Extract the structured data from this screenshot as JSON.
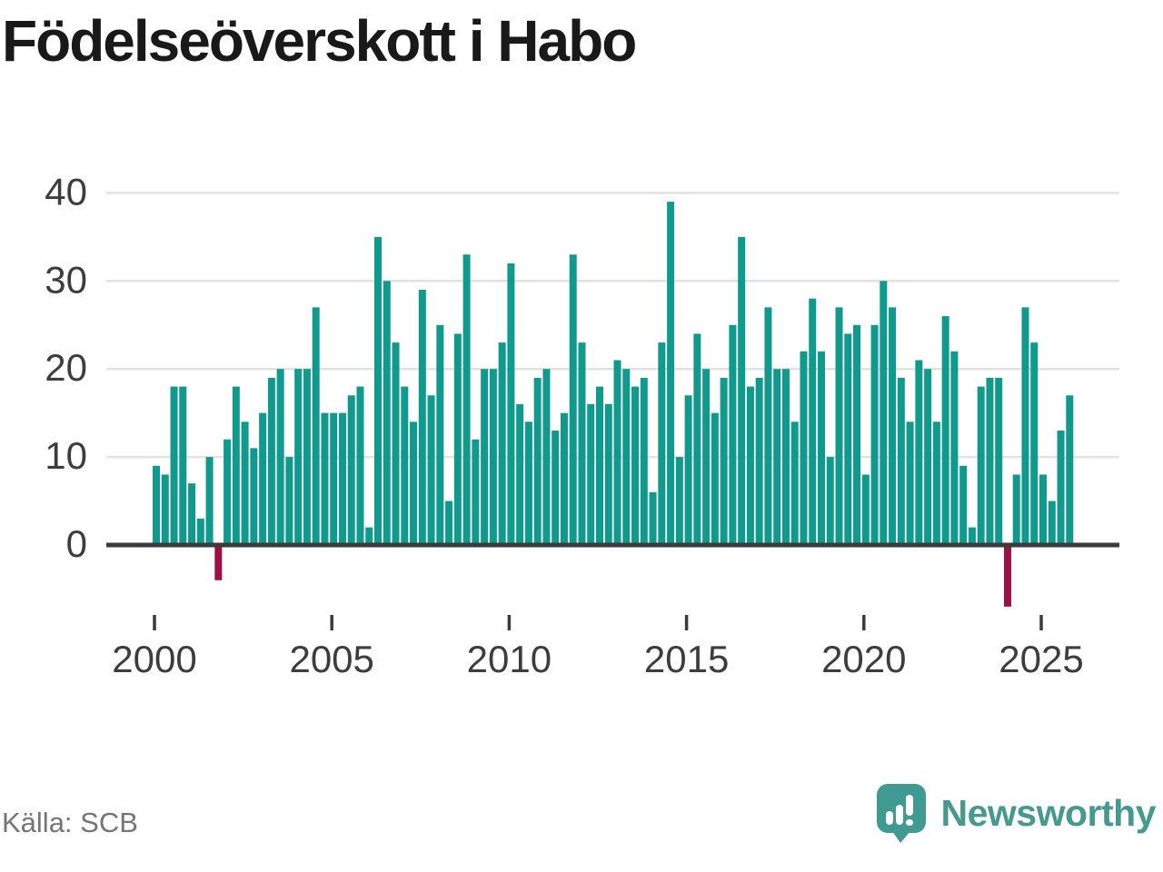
{
  "title": "Födelseöverskott i Habo",
  "source": "Källa: SCB",
  "brand": {
    "name": "Newsworthy"
  },
  "colors": {
    "bar_positive": "#109a8d",
    "bar_negative": "#9e0f46",
    "gridline": "#e2e2e2",
    "axis_line": "#3b3b3b",
    "tick_label": "#3d3d3d",
    "source_text": "#757575",
    "brand_teal": "#46998f",
    "title_text": "#191919"
  },
  "chart_data": {
    "type": "bar",
    "title": "Födelseöverskott i Habo",
    "source": "Källa: SCB",
    "frequency": "quarterly",
    "x_start": "2000-Q1",
    "x_end": "2025-Q4",
    "xlabel": "",
    "ylabel": "",
    "ylim": [
      -10,
      42
    ],
    "grid": true,
    "legend": false,
    "y_ticks": [
      0,
      10,
      20,
      30,
      40
    ],
    "x_ticks": [
      2000,
      2005,
      2010,
      2015,
      2020,
      2025
    ],
    "values": [
      9,
      8,
      18,
      18,
      7,
      3,
      10,
      -4,
      12,
      18,
      14,
      11,
      15,
      19,
      20,
      10,
      20,
      20,
      27,
      15,
      15,
      15,
      17,
      18,
      2,
      35,
      30,
      23,
      18,
      14,
      29,
      17,
      25,
      5,
      24,
      33,
      12,
      20,
      20,
      23,
      32,
      16,
      14,
      19,
      20,
      13,
      15,
      33,
      23,
      16,
      18,
      16,
      21,
      20,
      18,
      19,
      6,
      23,
      39,
      10,
      17,
      24,
      20,
      15,
      19,
      25,
      35,
      18,
      19,
      27,
      20,
      20,
      14,
      22,
      28,
      22,
      10,
      27,
      24,
      25,
      8,
      25,
      30,
      27,
      19,
      14,
      21,
      20,
      14,
      26,
      22,
      9,
      2,
      18,
      19,
      19,
      -7,
      8,
      27,
      23,
      8,
      5,
      13,
      17
    ]
  }
}
